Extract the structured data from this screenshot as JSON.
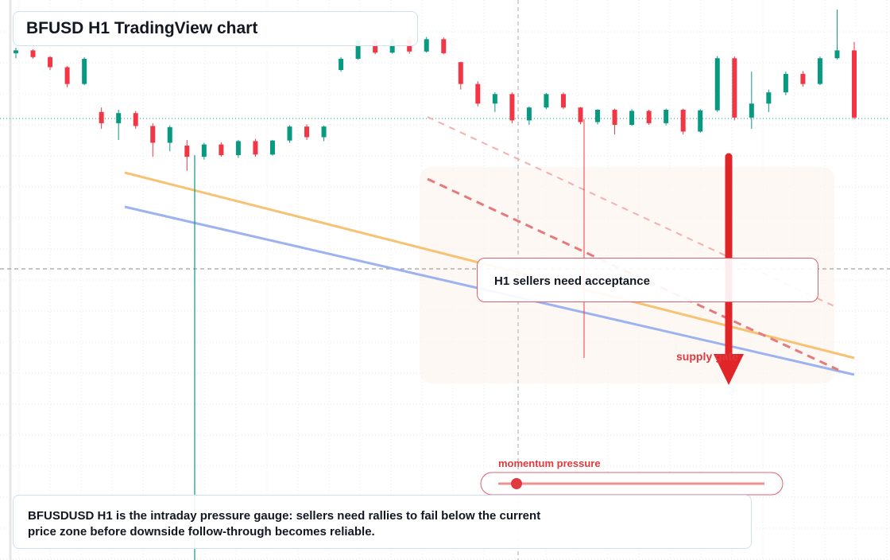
{
  "chart_data": {
    "type": "candlestick",
    "title": "BFUSD H1 TradingView chart",
    "annotations": {
      "zone": "H1 sellers need acceptance",
      "supply": "supply gate",
      "momentum": "momentum pressure"
    },
    "caption": "BFUSDUSD H1 is the intraday pressure gauge: sellers need rallies to fail below the current price zone before downside follow-through becomes reliable.",
    "up_color": "#089981",
    "down_color": "#f23645",
    "ylim": [
      0,
      100
    ],
    "candles": [
      [
        90.5,
        91.5,
        89.6,
        91.0
      ],
      [
        91.0,
        91.2,
        89.5,
        89.8
      ],
      [
        89.8,
        90.0,
        87.5,
        88.0
      ],
      [
        88.0,
        88.2,
        84.4,
        85.0
      ],
      [
        85.0,
        89.8,
        84.8,
        89.5
      ],
      [
        80.0,
        80.8,
        77.0,
        78.0
      ],
      [
        78.0,
        80.4,
        75.0,
        79.8
      ],
      [
        79.8,
        80.2,
        77.0,
        77.5
      ],
      [
        77.5,
        78.0,
        72.0,
        74.5
      ],
      [
        74.5,
        77.6,
        73.0,
        77.3
      ],
      [
        74.0,
        75.0,
        69.5,
        72.0
      ],
      [
        72.0,
        74.5,
        71.5,
        74.2
      ],
      [
        74.2,
        74.6,
        72.0,
        72.3
      ],
      [
        72.3,
        75.0,
        71.8,
        74.8
      ],
      [
        74.8,
        75.2,
        72.0,
        72.4
      ],
      [
        72.4,
        75.0,
        72.2,
        74.9
      ],
      [
        74.9,
        77.6,
        74.5,
        77.4
      ],
      [
        77.4,
        77.8,
        75.0,
        75.5
      ],
      [
        75.5,
        77.6,
        74.8,
        77.4
      ],
      [
        87.5,
        89.8,
        87.2,
        89.5
      ],
      [
        89.5,
        93.3,
        89.3,
        92.8
      ],
      [
        92.8,
        93.0,
        90.3,
        90.6
      ],
      [
        90.6,
        93.2,
        90.4,
        92.9
      ],
      [
        92.9,
        93.4,
        90.4,
        90.8
      ],
      [
        90.8,
        93.4,
        90.6,
        93.0
      ],
      [
        93.0,
        93.3,
        90.3,
        90.5
      ],
      [
        88.9,
        89.0,
        84.0,
        85.0
      ],
      [
        85.0,
        85.5,
        81.0,
        81.5
      ],
      [
        81.5,
        83.5,
        80.0,
        83.2
      ],
      [
        83.2,
        83.5,
        78.0,
        78.5
      ],
      [
        78.5,
        81.0,
        77.7,
        80.8
      ],
      [
        80.8,
        83.4,
        80.5,
        83.2
      ],
      [
        83.2,
        83.5,
        80.5,
        80.8
      ],
      [
        80.8,
        80.9,
        77.8,
        78.2
      ],
      [
        78.2,
        80.5,
        77.8,
        80.4
      ],
      [
        80.4,
        80.6,
        76.0,
        77.7
      ],
      [
        77.7,
        80.5,
        77.5,
        80.2
      ],
      [
        80.2,
        80.4,
        77.7,
        78.0
      ],
      [
        78.0,
        80.6,
        77.6,
        80.4
      ],
      [
        80.4,
        80.6,
        76.0,
        76.5
      ],
      [
        76.5,
        80.5,
        76.3,
        80.3
      ],
      [
        80.3,
        90.0,
        80.0,
        89.6
      ],
      [
        89.6,
        89.9,
        78.5,
        79.0
      ],
      [
        79.0,
        87.2,
        77.0,
        81.5
      ],
      [
        81.5,
        84.0,
        80.0,
        83.5
      ],
      [
        83.5,
        87.2,
        83.0,
        86.8
      ],
      [
        86.8,
        87.3,
        84.5,
        85.0
      ],
      [
        85.0,
        89.9,
        84.8,
        89.6
      ],
      [
        89.6,
        98.3,
        89.4,
        91.0
      ],
      [
        91.0,
        92.5,
        78.7,
        79.0
      ]
    ]
  }
}
